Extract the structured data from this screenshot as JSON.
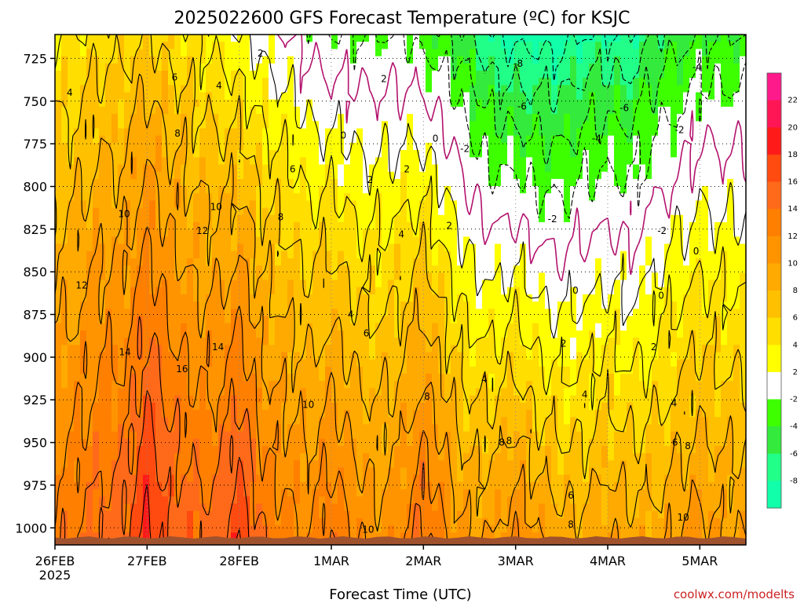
{
  "chart_data": {
    "type": "heatmap",
    "title": "2025022600 GFS Forecast Temperature (ºC) for KSJC",
    "xlabel": "Forecast Time (UTC)",
    "ylabel": "",
    "x_ticks": [
      "26FEB",
      "27FEB",
      "28FEB",
      "1MAR",
      "2MAR",
      "3MAR",
      "4MAR",
      "5MAR"
    ],
    "x_tick_year": "2025",
    "x_range": [
      0,
      7.5
    ],
    "y_ticks": [
      725,
      750,
      775,
      800,
      825,
      850,
      875,
      900,
      925,
      950,
      975,
      1000
    ],
    "y_range": [
      711,
      1010
    ],
    "surface_pressure": 1007,
    "colorbar_levels": [
      22,
      20,
      18,
      16,
      14,
      12,
      10,
      8,
      6,
      4,
      2,
      -2,
      -4,
      -6,
      -8
    ],
    "colorbar_colors": [
      "#ff1a8c",
      "#ff1655",
      "#ff1a1a",
      "#ff4a10",
      "#ff6a1a",
      "#ff7f00",
      "#ff9400",
      "#ffaa00",
      "#ffc000",
      "#ffde00",
      "#ffff00",
      "#ffffff",
      "#3dff00",
      "#33ea3d",
      "#22ff88",
      "#11ffaa"
    ],
    "columns": [
      {
        "day": 0.0,
        "freezing_level": 0,
        "min_temp_top": 4
      },
      {
        "day": 0.25,
        "freezing_level": 0,
        "min_temp_top": 4
      },
      {
        "day": 0.5,
        "freezing_level": 0,
        "min_temp_top": 5
      },
      {
        "day": 0.75,
        "freezing_level": 0,
        "min_temp_top": 5
      },
      {
        "day": 1.0,
        "freezing_level": 0,
        "min_temp_top": 6
      },
      {
        "day": 1.25,
        "freezing_level": 0,
        "min_temp_top": 5
      },
      {
        "day": 1.5,
        "freezing_level": 0,
        "min_temp_top": 4
      },
      {
        "day": 1.75,
        "freezing_level": 0,
        "min_temp_top": 3
      },
      {
        "day": 2.0,
        "freezing_level": 0,
        "min_temp_top": 2
      },
      {
        "day": 2.25,
        "freezing_level": 730,
        "min_temp_top": 1
      },
      {
        "day": 2.5,
        "freezing_level": 760,
        "min_temp_top": 0
      },
      {
        "day": 2.75,
        "freezing_level": 770,
        "min_temp_top": -1
      },
      {
        "day": 3.0,
        "freezing_level": 775,
        "min_temp_top": -2
      },
      {
        "day": 3.25,
        "freezing_level": 770,
        "min_temp_top": -2
      },
      {
        "day": 3.5,
        "freezing_level": 760,
        "min_temp_top": -2
      },
      {
        "day": 3.75,
        "freezing_level": 770,
        "min_temp_top": -2
      },
      {
        "day": 4.0,
        "freezing_level": 780,
        "min_temp_top": -3
      },
      {
        "day": 4.25,
        "freezing_level": 800,
        "min_temp_top": -4
      },
      {
        "day": 4.5,
        "freezing_level": 840,
        "min_temp_top": -6
      },
      {
        "day": 4.75,
        "freezing_level": 850,
        "min_temp_top": -8
      },
      {
        "day": 5.0,
        "freezing_level": 855,
        "min_temp_top": -9
      },
      {
        "day": 5.25,
        "freezing_level": 860,
        "min_temp_top": -9
      },
      {
        "day": 5.5,
        "freezing_level": 855,
        "min_temp_top": -9
      },
      {
        "day": 5.75,
        "freezing_level": 860,
        "min_temp_top": -8
      },
      {
        "day": 6.0,
        "freezing_level": 850,
        "min_temp_top": -8
      },
      {
        "day": 6.25,
        "freezing_level": 855,
        "min_temp_top": -8
      },
      {
        "day": 6.5,
        "freezing_level": 860,
        "min_temp_top": -6
      },
      {
        "day": 6.75,
        "freezing_level": 845,
        "min_temp_top": -5
      },
      {
        "day": 7.0,
        "freezing_level": 840,
        "min_temp_top": -4
      },
      {
        "day": 7.25,
        "freezing_level": 835,
        "min_temp_top": -4
      },
      {
        "day": 7.5,
        "freezing_level": 830,
        "min_temp_top": -4
      }
    ],
    "surface_temperatures": [
      {
        "day": 0.0,
        "t_sfc": 13
      },
      {
        "day": 0.25,
        "t_sfc": 14
      },
      {
        "day": 0.5,
        "t_sfc": 15
      },
      {
        "day": 0.75,
        "t_sfc": 15
      },
      {
        "day": 1.0,
        "t_sfc": 19
      },
      {
        "day": 1.25,
        "t_sfc": 16
      },
      {
        "day": 1.5,
        "t_sfc": 15
      },
      {
        "day": 1.75,
        "t_sfc": 15
      },
      {
        "day": 2.0,
        "t_sfc": 18
      },
      {
        "day": 2.25,
        "t_sfc": 14
      },
      {
        "day": 2.5,
        "t_sfc": 13
      },
      {
        "day": 2.75,
        "t_sfc": 12
      },
      {
        "day": 3.0,
        "t_sfc": 14
      },
      {
        "day": 3.25,
        "t_sfc": 12
      },
      {
        "day": 3.5,
        "t_sfc": 11
      },
      {
        "day": 3.75,
        "t_sfc": 12
      },
      {
        "day": 4.0,
        "t_sfc": 15
      },
      {
        "day": 4.25,
        "t_sfc": 12
      },
      {
        "day": 4.5,
        "t_sfc": 10
      },
      {
        "day": 4.75,
        "t_sfc": 10
      },
      {
        "day": 5.0,
        "t_sfc": 12
      },
      {
        "day": 5.25,
        "t_sfc": 10
      },
      {
        "day": 5.5,
        "t_sfc": 9
      },
      {
        "day": 5.75,
        "t_sfc": 9
      },
      {
        "day": 6.0,
        "t_sfc": 10
      },
      {
        "day": 6.25,
        "t_sfc": 9
      },
      {
        "day": 6.5,
        "t_sfc": 9
      },
      {
        "day": 6.75,
        "t_sfc": 10
      },
      {
        "day": 7.0,
        "t_sfc": 11
      },
      {
        "day": 7.25,
        "t_sfc": 10
      },
      {
        "day": 7.5,
        "t_sfc": 10
      }
    ],
    "contour_labels": [
      {
        "text": "2",
        "day": 2.23,
        "p": 722
      },
      {
        "text": "4",
        "day": 0.16,
        "p": 745
      },
      {
        "text": "6",
        "day": 1.3,
        "p": 736
      },
      {
        "text": "4",
        "day": 1.78,
        "p": 741
      },
      {
        "text": "8",
        "day": 1.33,
        "p": 769
      },
      {
        "text": "6",
        "day": 2.58,
        "p": 790
      },
      {
        "text": "10",
        "day": 0.75,
        "p": 816
      },
      {
        "text": "10",
        "day": 1.75,
        "p": 812
      },
      {
        "text": "12",
        "day": 1.6,
        "p": 826
      },
      {
        "text": "8",
        "day": 2.45,
        "p": 818
      },
      {
        "text": "12",
        "day": 0.29,
        "p": 858
      },
      {
        "text": "14",
        "day": 0.76,
        "p": 897
      },
      {
        "text": "14",
        "day": 1.77,
        "p": 894
      },
      {
        "text": "16",
        "day": 1.38,
        "p": 907
      },
      {
        "text": "0",
        "day": 3.13,
        "p": 770
      },
      {
        "text": "2",
        "day": 3.57,
        "p": 737
      },
      {
        "text": "0",
        "day": 4.13,
        "p": 772
      },
      {
        "text": "-2",
        "day": 4.45,
        "p": 778
      },
      {
        "text": "2",
        "day": 3.42,
        "p": 796
      },
      {
        "text": "2",
        "day": 3.82,
        "p": 790
      },
      {
        "text": "2",
        "day": 4.28,
        "p": 823
      },
      {
        "text": "4",
        "day": 3.76,
        "p": 828
      },
      {
        "text": "4",
        "day": 3.21,
        "p": 875
      },
      {
        "text": "6",
        "day": 3.38,
        "p": 886
      },
      {
        "text": "10",
        "day": 2.75,
        "p": 928
      },
      {
        "text": "8",
        "day": 4.04,
        "p": 923
      },
      {
        "text": "4",
        "day": 4.66,
        "p": 913
      },
      {
        "text": "10",
        "day": 3.4,
        "p": 1001
      },
      {
        "text": "8",
        "day": 4.85,
        "p": 950
      },
      {
        "text": "-8",
        "day": 5.03,
        "p": 728
      },
      {
        "text": "-6",
        "day": 5.07,
        "p": 753
      },
      {
        "text": "-6",
        "day": 6.18,
        "p": 754
      },
      {
        "text": "-4",
        "day": 6.97,
        "p": 730
      },
      {
        "text": "-4",
        "day": 5.88,
        "p": 772
      },
      {
        "text": "-2",
        "day": 6.78,
        "p": 767
      },
      {
        "text": "-2",
        "day": 5.4,
        "p": 819
      },
      {
        "text": "-2",
        "day": 6.59,
        "p": 826
      },
      {
        "text": "0",
        "day": 5.65,
        "p": 861
      },
      {
        "text": "0",
        "day": 6.58,
        "p": 864
      },
      {
        "text": "0",
        "day": 6.96,
        "p": 838
      },
      {
        "text": "2",
        "day": 5.52,
        "p": 892
      },
      {
        "text": "2",
        "day": 6.5,
        "p": 894
      },
      {
        "text": "4",
        "day": 5.75,
        "p": 922
      },
      {
        "text": "4",
        "day": 6.72,
        "p": 927
      },
      {
        "text": "8",
        "day": 4.93,
        "p": 949
      },
      {
        "text": "6",
        "day": 5.6,
        "p": 981
      },
      {
        "text": "8",
        "day": 5.6,
        "p": 998
      },
      {
        "text": "6",
        "day": 6.73,
        "p": 950
      },
      {
        "text": "8",
        "day": 6.87,
        "p": 952
      },
      {
        "text": "10",
        "day": 6.82,
        "p": 994
      }
    ]
  },
  "credit": "coolwx.com/modelts"
}
